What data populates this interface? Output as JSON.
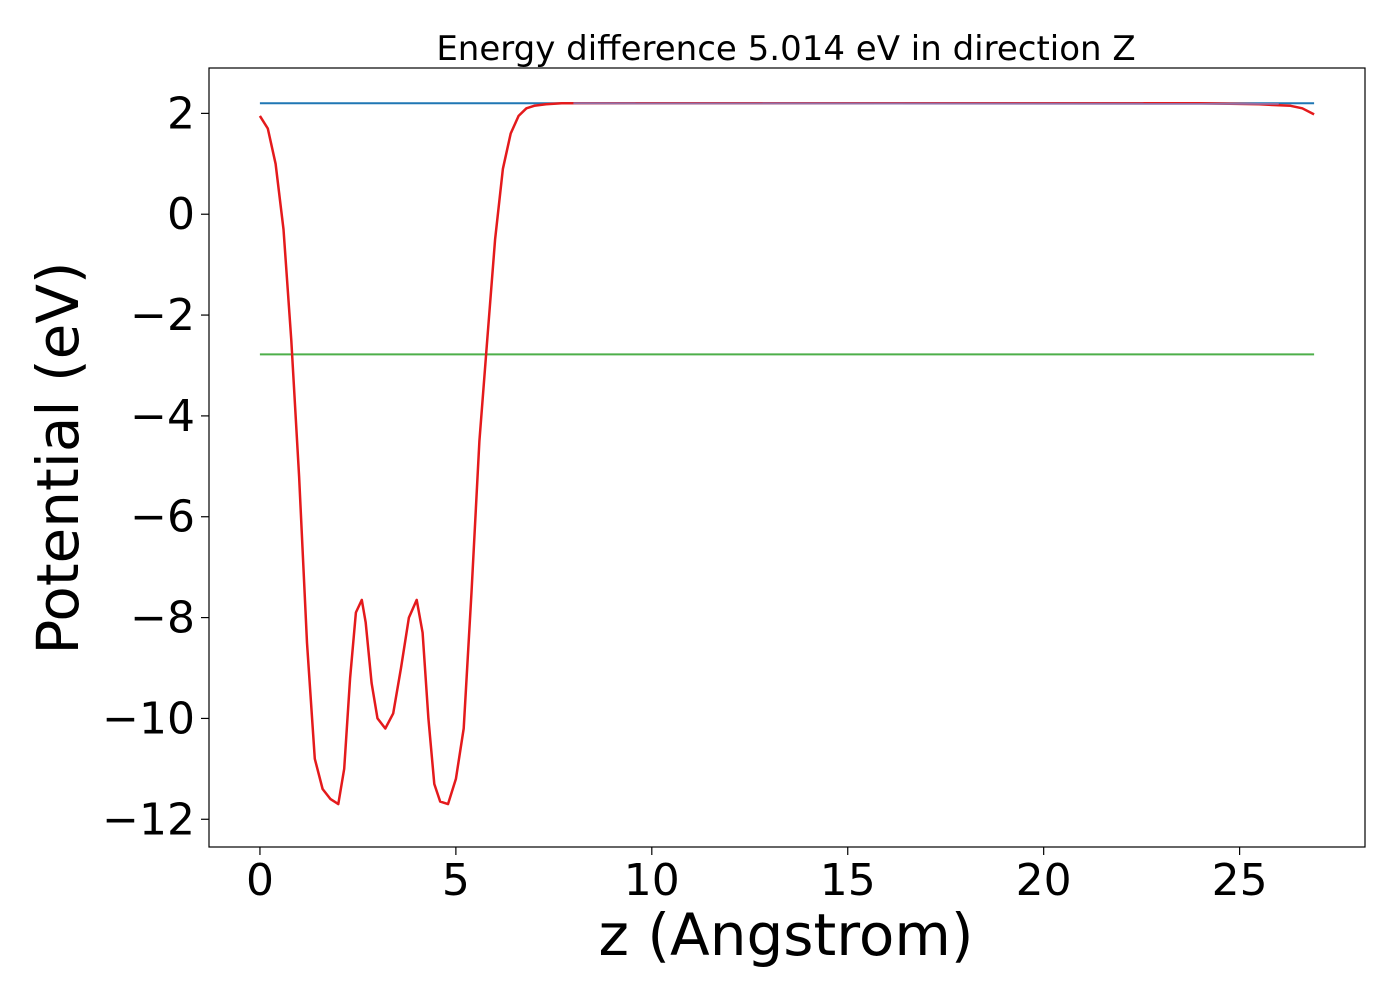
{
  "chart_data": {
    "type": "line",
    "title": "Energy difference 5.014 eV in direction Z",
    "xlabel": "z (Angstrom)",
    "ylabel": "Potential (eV)",
    "xlim": [
      -1.3,
      28.2
    ],
    "ylim": [
      -12.55,
      2.9
    ],
    "xticks": [
      0,
      5,
      10,
      15,
      20,
      25
    ],
    "yticks": [
      2,
      0,
      -2,
      -4,
      -6,
      -8,
      -10,
      -12
    ],
    "xtick_labels": [
      "0",
      "5",
      "10",
      "15",
      "20",
      "25"
    ],
    "ytick_labels": [
      "2",
      "0",
      "−2",
      "−4",
      "−6",
      "−8",
      "−10",
      "−12"
    ],
    "grid": false,
    "series": [
      {
        "color": "#1f77b4",
        "x": [
          0,
          26.9
        ],
        "y": [
          2.2,
          2.2
        ]
      },
      {
        "color": "#4daf4a",
        "x": [
          0,
          26.9
        ],
        "y": [
          -2.78,
          -2.78
        ]
      },
      {
        "color": "#e41a1c",
        "x": [
          0,
          0.2,
          0.4,
          0.6,
          0.8,
          1.0,
          1.2,
          1.4,
          1.6,
          1.8,
          2.0,
          2.15,
          2.3,
          2.45,
          2.6,
          2.7,
          2.85,
          3.0,
          3.2,
          3.4,
          3.6,
          3.8,
          4.0,
          4.15,
          4.3,
          4.45,
          4.6,
          4.8,
          5.0,
          5.2,
          5.4,
          5.6,
          5.8,
          6.0,
          6.2,
          6.4,
          6.6,
          6.8,
          7.0,
          7.3,
          7.7,
          8.2,
          9.0,
          10,
          15,
          20,
          24,
          25.5,
          26.3,
          26.6,
          26.9
        ],
        "y": [
          1.95,
          1.7,
          1.0,
          -0.3,
          -2.5,
          -5.2,
          -8.5,
          -10.8,
          -11.4,
          -11.6,
          -11.7,
          -11.0,
          -9.2,
          -7.9,
          -7.65,
          -8.1,
          -9.3,
          -10.0,
          -10.2,
          -9.9,
          -9.0,
          -8.0,
          -7.65,
          -8.3,
          -10.0,
          -11.3,
          -11.65,
          -11.7,
          -11.2,
          -10.2,
          -7.5,
          -4.5,
          -2.5,
          -0.5,
          0.9,
          1.6,
          1.95,
          2.1,
          2.15,
          2.18,
          2.2,
          2.2,
          2.2,
          2.2,
          2.2,
          2.2,
          2.2,
          2.18,
          2.15,
          2.1,
          1.98
        ]
      },
      {
        "color": "#9370a8",
        "x": [
          8.0,
          26.0
        ],
        "y": [
          2.2,
          2.19
        ]
      }
    ]
  }
}
